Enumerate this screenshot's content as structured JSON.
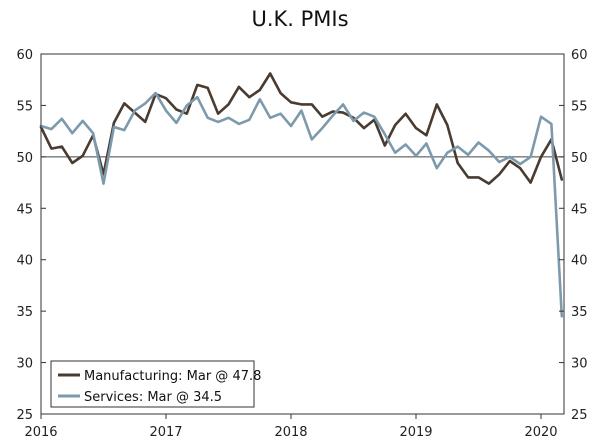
{
  "chart_data": {
    "type": "line",
    "title": "U.K. PMIs",
    "xlabel": "",
    "ylabel": "",
    "ylim": [
      25,
      60
    ],
    "y_ticks": [
      25,
      30,
      35,
      40,
      45,
      50,
      55,
      60
    ],
    "x_ticks": [
      "2016",
      "2017",
      "2018",
      "2019",
      "2020"
    ],
    "reference_line": 50,
    "legend_position": "bottom-left",
    "x": [
      "2016-01",
      "2016-02",
      "2016-03",
      "2016-04",
      "2016-05",
      "2016-06",
      "2016-07",
      "2016-08",
      "2016-09",
      "2016-10",
      "2016-11",
      "2016-12",
      "2017-01",
      "2017-02",
      "2017-03",
      "2017-04",
      "2017-05",
      "2017-06",
      "2017-07",
      "2017-08",
      "2017-09",
      "2017-10",
      "2017-11",
      "2017-12",
      "2018-01",
      "2018-02",
      "2018-03",
      "2018-04",
      "2018-05",
      "2018-06",
      "2018-07",
      "2018-08",
      "2018-09",
      "2018-10",
      "2018-11",
      "2018-12",
      "2019-01",
      "2019-02",
      "2019-03",
      "2019-04",
      "2019-05",
      "2019-06",
      "2019-07",
      "2019-08",
      "2019-09",
      "2019-10",
      "2019-11",
      "2019-12",
      "2020-01",
      "2020-02",
      "2020-03"
    ],
    "series": [
      {
        "name": "Manufacturing",
        "legend_label": "Manufacturing: Mar @ 47.8",
        "color": "#4a3b30",
        "values": [
          52.9,
          50.8,
          51.0,
          49.4,
          50.1,
          52.1,
          48.3,
          53.3,
          55.2,
          54.3,
          53.4,
          56.1,
          55.7,
          54.6,
          54.2,
          57.0,
          56.7,
          54.2,
          55.1,
          56.8,
          55.8,
          56.5,
          58.1,
          56.2,
          55.3,
          55.1,
          55.1,
          53.9,
          54.4,
          54.3,
          53.8,
          52.8,
          53.6,
          51.1,
          53.1,
          54.2,
          52.8,
          52.1,
          55.1,
          53.1,
          49.4,
          48.0,
          48.0,
          47.4,
          48.3,
          49.6,
          48.9,
          47.5,
          50.0,
          51.7,
          47.8
        ]
      },
      {
        "name": "Services",
        "legend_label": "Services: Mar @ 34.5",
        "color": "#7d9aac",
        "values": [
          53.0,
          52.7,
          53.7,
          52.3,
          53.5,
          52.3,
          47.4,
          52.9,
          52.6,
          54.5,
          55.2,
          56.2,
          54.5,
          53.3,
          55.0,
          55.8,
          53.8,
          53.4,
          53.8,
          53.2,
          53.6,
          55.6,
          53.8,
          54.2,
          53.0,
          54.5,
          51.7,
          52.8,
          54.0,
          55.1,
          53.5,
          54.3,
          53.9,
          52.2,
          50.4,
          51.2,
          50.1,
          51.3,
          48.9,
          50.4,
          51.0,
          50.2,
          51.4,
          50.6,
          49.5,
          50.0,
          49.3,
          50.0,
          53.9,
          53.2,
          34.5
        ]
      }
    ]
  }
}
